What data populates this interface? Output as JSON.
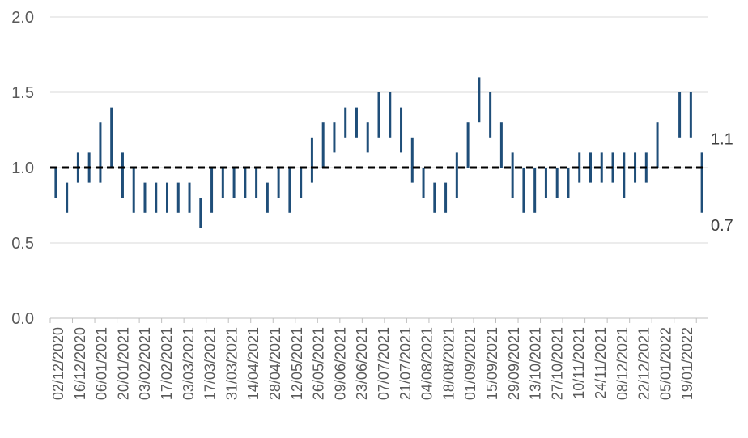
{
  "chart_data": {
    "type": "range-bar",
    "title": "",
    "xlabel": "",
    "ylabel": "",
    "ylim": [
      0,
      2
    ],
    "yticks": [
      "0.0",
      "0.5",
      "1.0",
      "1.5",
      "2.0"
    ],
    "grid": "horizontal",
    "reference_line": 1.0,
    "x_tick_labels": [
      "02/12/2020",
      "16/12/2020",
      "06/01/2021",
      "20/01/2021",
      "03/02/2021",
      "17/02/2021",
      "03/03/2021",
      "17/03/2021",
      "31/03/2021",
      "14/04/2021",
      "28/04/2021",
      "12/05/2021",
      "26/05/2021",
      "09/06/2021",
      "23/06/2021",
      "07/07/2021",
      "21/07/2021",
      "04/08/2021",
      "18/08/2021",
      "01/09/2021",
      "15/09/2021",
      "29/09/2021",
      "13/10/2021",
      "27/10/2021",
      "10/11/2021",
      "24/11/2021",
      "08/12/2021",
      "22/12/2021",
      "05/01/2022",
      "19/01/2022"
    ],
    "ranges": [
      [
        0.8,
        1.0
      ],
      [
        0.7,
        0.9
      ],
      [
        0.9,
        1.1
      ],
      [
        0.9,
        1.1
      ],
      [
        0.9,
        1.3
      ],
      [
        1.0,
        1.4
      ],
      [
        0.8,
        1.1
      ],
      [
        0.7,
        1.0
      ],
      [
        0.7,
        0.9
      ],
      [
        0.7,
        0.9
      ],
      [
        0.7,
        0.9
      ],
      [
        0.7,
        0.9
      ],
      [
        0.7,
        0.9
      ],
      [
        0.6,
        0.8
      ],
      [
        0.7,
        1.0
      ],
      [
        0.8,
        1.0
      ],
      [
        0.8,
        1.0
      ],
      [
        0.8,
        1.0
      ],
      [
        0.8,
        1.0
      ],
      [
        0.7,
        0.9
      ],
      [
        0.8,
        1.0
      ],
      [
        0.7,
        1.0
      ],
      [
        0.8,
        1.0
      ],
      [
        0.9,
        1.2
      ],
      [
        1.0,
        1.3
      ],
      [
        1.1,
        1.3
      ],
      [
        1.2,
        1.4
      ],
      [
        1.2,
        1.4
      ],
      [
        1.1,
        1.3
      ],
      [
        1.2,
        1.5
      ],
      [
        1.2,
        1.5
      ],
      [
        1.1,
        1.4
      ],
      [
        0.9,
        1.2
      ],
      [
        0.8,
        1.0
      ],
      [
        0.7,
        0.9
      ],
      [
        0.7,
        0.9
      ],
      [
        0.8,
        1.1
      ],
      [
        1.0,
        1.3
      ],
      [
        1.3,
        1.6
      ],
      [
        1.2,
        1.5
      ],
      [
        1.0,
        1.3
      ],
      [
        0.8,
        1.1
      ],
      [
        0.7,
        1.0
      ],
      [
        0.7,
        1.0
      ],
      [
        0.8,
        1.0
      ],
      [
        0.8,
        1.0
      ],
      [
        0.8,
        1.0
      ],
      [
        0.9,
        1.1
      ],
      [
        0.9,
        1.1
      ],
      [
        0.9,
        1.1
      ],
      [
        0.9,
        1.1
      ],
      [
        0.8,
        1.1
      ],
      [
        0.9,
        1.1
      ],
      [
        0.9,
        1.1
      ],
      [
        1.0,
        1.3
      ],
      null,
      [
        1.2,
        1.5
      ],
      [
        1.2,
        1.5
      ],
      [
        0.7,
        1.1
      ]
    ],
    "end_labels": [
      "1.1",
      "0.7"
    ],
    "colors": {
      "bar": "#1f4e79",
      "reference": "#000000",
      "grid": "#d9d9d9",
      "axis": "#bfbfbf"
    }
  }
}
